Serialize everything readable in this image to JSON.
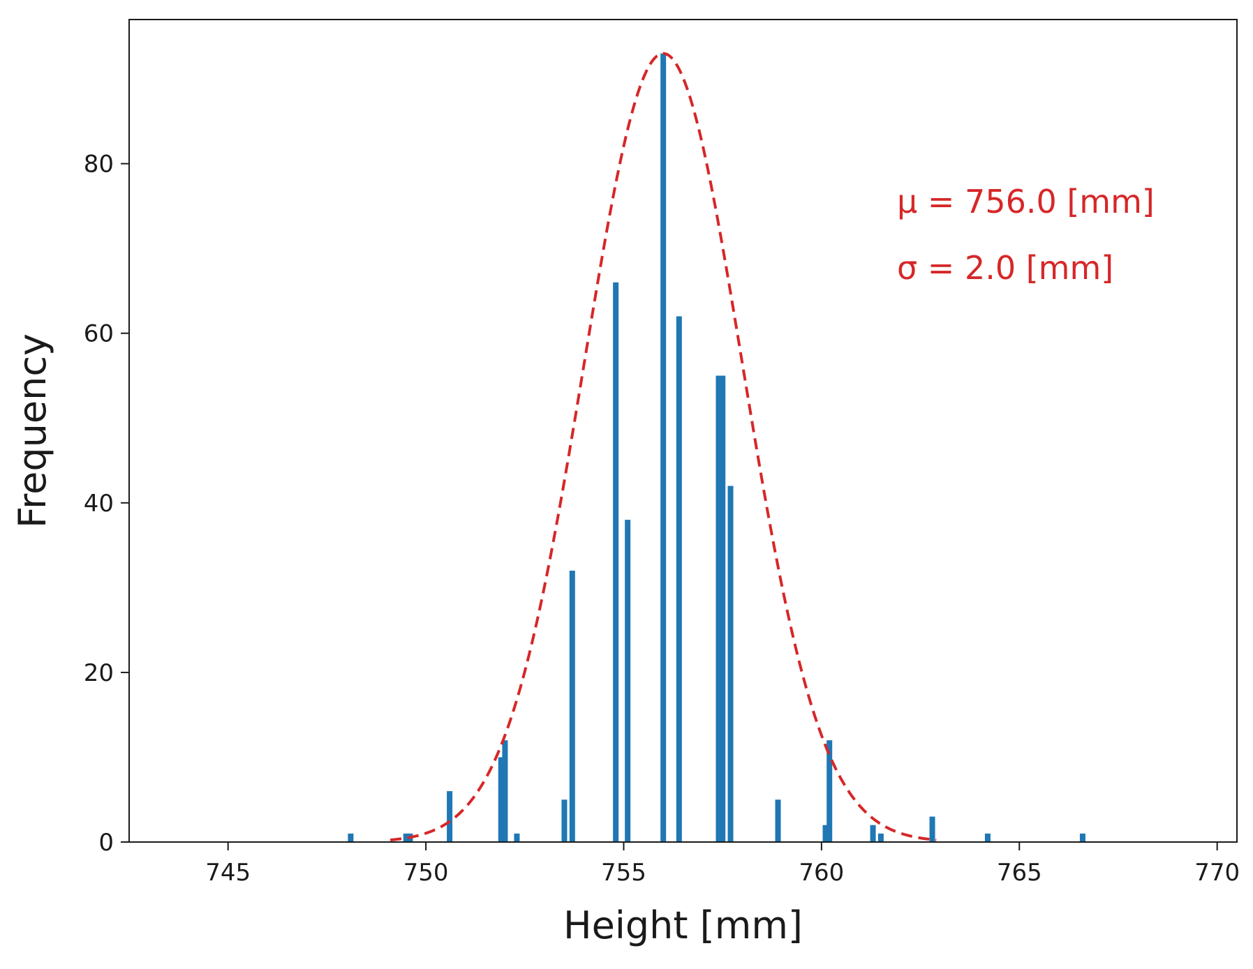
{
  "chart_data": {
    "type": "bar",
    "xlabel": "Height [mm]",
    "ylabel": "Frequency",
    "xlim": [
      742.5,
      770.5
    ],
    "ylim": [
      0,
      97
    ],
    "xticks": [
      745,
      750,
      755,
      760,
      765,
      770
    ],
    "yticks": [
      0,
      20,
      40,
      60,
      80
    ],
    "grid": false,
    "legend": "none",
    "bar_color": "#1f77b4",
    "fit_color": "#d62728",
    "series": [
      {
        "x": [
          748.1,
          749.5,
          749.6,
          750.6,
          751.9,
          752.0,
          752.3,
          753.5,
          753.7,
          754.8,
          755.1,
          756.0,
          756.4,
          757.4,
          757.5,
          757.7,
          758.9,
          760.1,
          760.2,
          761.3,
          761.5,
          762.8,
          764.2,
          766.6
        ],
        "values": [
          1,
          1,
          1,
          6,
          10,
          12,
          1,
          5,
          32,
          66,
          38,
          93,
          62,
          55,
          55,
          42,
          5,
          2,
          12,
          2,
          1,
          3,
          1,
          1
        ]
      }
    ],
    "fit": {
      "type": "normal",
      "mu": 756.0,
      "sigma": 2.0,
      "peak": 93,
      "range": [
        749.1,
        762.9
      ],
      "style": "dashed"
    },
    "annotations": [
      {
        "label": "μ = 756.0 [mm]"
      },
      {
        "label": "σ = 2.0 [mm]"
      }
    ]
  }
}
